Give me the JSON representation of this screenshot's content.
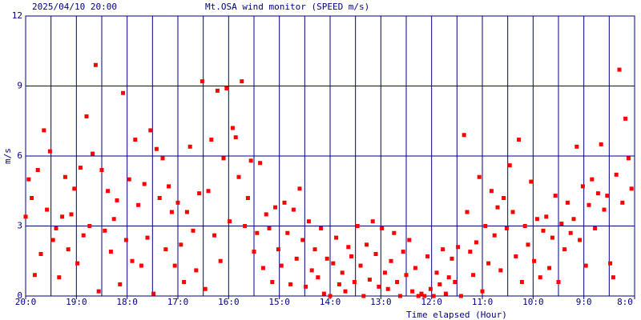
{
  "chart_data": {
    "type": "scatter",
    "subtitle": "2025/04/10 20:00",
    "title": "Mt.OSA wind monitor (SPEED m/s)",
    "y_label": "m/s",
    "x_label": "Time elapsed (Hour)",
    "color": "#ff0000",
    "grid": true,
    "xlim": [
      0,
      12
    ],
    "xticks": [
      {
        "value": 0,
        "label": "20:0"
      },
      {
        "value": 1,
        "label": "19:0"
      },
      {
        "value": 2,
        "label": "18:0"
      },
      {
        "value": 3,
        "label": "17:0"
      },
      {
        "value": 4,
        "label": "16:0"
      },
      {
        "value": 5,
        "label": "15:0"
      },
      {
        "value": 6,
        "label": "14:0"
      },
      {
        "value": 7,
        "label": "13:0"
      },
      {
        "value": 8,
        "label": "12:0"
      },
      {
        "value": 9,
        "label": "11:0"
      },
      {
        "value": 10,
        "label": "10:0"
      },
      {
        "value": 11,
        "label": "9:0"
      },
      {
        "value": 12,
        "label": "8:0"
      }
    ],
    "xgrid": [
      0.5,
      1,
      1.5,
      2,
      2.5,
      3,
      3.5,
      4,
      4.5,
      5,
      5.5,
      6,
      6.5,
      7,
      7.5,
      8,
      8.5,
      9,
      9.5,
      10,
      10.5,
      11,
      11.5
    ],
    "ylim": [
      0,
      12
    ],
    "yticks": [
      0,
      3,
      6,
      9,
      12
    ],
    "x": [
      0,
      0.06,
      0.12,
      0.18,
      0.24,
      0.3,
      0.36,
      0.42,
      0.48,
      0.54,
      0.6,
      0.66,
      0.72,
      0.78,
      0.84,
      0.9,
      0.96,
      1.02,
      1.08,
      1.14,
      1.2,
      1.26,
      1.32,
      1.38,
      1.44,
      1.5,
      1.56,
      1.62,
      1.68,
      1.74,
      1.8,
      1.86,
      1.92,
      1.98,
      2.04,
      2.1,
      2.16,
      2.22,
      2.28,
      2.34,
      2.4,
      2.46,
      2.52,
      2.58,
      2.64,
      2.7,
      2.76,
      2.82,
      2.88,
      2.94,
      3,
      3.06,
      3.12,
      3.18,
      3.24,
      3.3,
      3.36,
      3.42,
      3.48,
      3.54,
      3.6,
      3.66,
      3.72,
      3.78,
      3.84,
      3.9,
      3.96,
      4.02,
      4.08,
      4.14,
      4.2,
      4.26,
      4.32,
      4.38,
      4.44,
      4.5,
      4.56,
      4.62,
      4.68,
      4.74,
      4.8,
      4.86,
      4.92,
      4.98,
      5.04,
      5.1,
      5.16,
      5.22,
      5.28,
      5.34,
      5.4,
      5.46,
      5.52,
      5.58,
      5.64,
      5.7,
      5.76,
      5.82,
      5.88,
      5.94,
      6,
      6.06,
      6.12,
      6.18,
      6.24,
      6.3,
      6.36,
      6.42,
      6.48,
      6.54,
      6.6,
      6.66,
      6.72,
      6.78,
      6.84,
      6.9,
      6.96,
      7.02,
      7.08,
      7.14,
      7.2,
      7.26,
      7.32,
      7.38,
      7.44,
      7.5,
      7.56,
      7.62,
      7.68,
      7.74,
      7.8,
      7.86,
      7.92,
      7.98,
      8.04,
      8.1,
      8.16,
      8.22,
      8.28,
      8.34,
      8.4,
      8.46,
      8.52,
      8.58,
      8.64,
      8.7,
      8.76,
      8.82,
      8.88,
      8.94,
      9,
      9.06,
      9.12,
      9.18,
      9.24,
      9.3,
      9.36,
      9.42,
      9.48,
      9.54,
      9.6,
      9.66,
      9.72,
      9.78,
      9.84,
      9.9,
      9.96,
      10.02,
      10.08,
      10.14,
      10.2,
      10.26,
      10.32,
      10.38,
      10.44,
      10.5,
      10.56,
      10.62,
      10.68,
      10.74,
      10.8,
      10.86,
      10.92,
      10.98,
      11.04,
      11.1,
      11.16,
      11.22,
      11.28,
      11.34,
      11.4,
      11.46,
      11.52,
      11.58,
      11.64,
      11.7,
      11.76,
      11.82,
      11.88,
      11.94
    ],
    "values": [
      3.4,
      5.0,
      4.2,
      0.9,
      5.4,
      1.8,
      7.1,
      3.7,
      6.2,
      2.4,
      2.9,
      0.8,
      3.4,
      5.1,
      2.0,
      3.5,
      4.6,
      1.4,
      5.5,
      2.6,
      7.7,
      3.0,
      6.1,
      9.9,
      0.2,
      5.4,
      2.8,
      4.5,
      1.9,
      3.3,
      4.1,
      0.5,
      8.7,
      2.4,
      5.0,
      1.5,
      6.7,
      3.9,
      1.3,
      4.8,
      2.5,
      7.1,
      0.1,
      6.3,
      4.2,
      5.9,
      2.0,
      4.7,
      3.6,
      1.3,
      4.0,
      2.2,
      0.6,
      3.6,
      6.4,
      2.8,
      1.1,
      4.4,
      9.2,
      0.3,
      4.5,
      6.7,
      2.6,
      8.8,
      1.5,
      5.9,
      8.9,
      3.2,
      7.2,
      6.8,
      5.1,
      9.2,
      3.0,
      4.2,
      5.8,
      1.9,
      2.7,
      5.7,
      1.2,
      3.5,
      2.9,
      0.6,
      3.8,
      2.0,
      1.3,
      4.0,
      2.7,
      0.5,
      3.7,
      1.6,
      4.6,
      2.4,
      0.4,
      3.2,
      1.1,
      2.0,
      0.8,
      2.9,
      0.1,
      1.6,
      0.0,
      1.4,
      2.5,
      0.5,
      1.0,
      0.2,
      2.1,
      1.7,
      0.6,
      3.0,
      1.3,
      0.0,
      2.2,
      0.7,
      3.2,
      1.8,
      0.4,
      2.9,
      1.0,
      0.3,
      1.5,
      2.7,
      0.6,
      0.0,
      1.9,
      0.9,
      2.4,
      0.2,
      1.2,
      0.0,
      0.1,
      0.0,
      1.7,
      0.3,
      0.0,
      1.0,
      0.5,
      2.0,
      0.1,
      0.8,
      1.6,
      0.6,
      2.1,
      0.0,
      6.9,
      3.6,
      1.9,
      0.9,
      2.3,
      5.1,
      0.2,
      3.0,
      1.4,
      4.5,
      2.6,
      3.8,
      1.1,
      4.2,
      2.9,
      5.6,
      3.6,
      1.7,
      6.7,
      0.6,
      3.0,
      2.2,
      4.9,
      1.5,
      3.3,
      0.8,
      2.8,
      3.4,
      1.2,
      2.5,
      4.3,
      0.6,
      3.1,
      2.0,
      4.0,
      2.7,
      3.3,
      6.4,
      2.4,
      4.7,
      1.3,
      3.9,
      5.0,
      2.9,
      4.4,
      6.5,
      3.7,
      4.3,
      1.4,
      0.8,
      5.2,
      9.7,
      4.0,
      7.6,
      5.9,
      4.6
    ]
  }
}
